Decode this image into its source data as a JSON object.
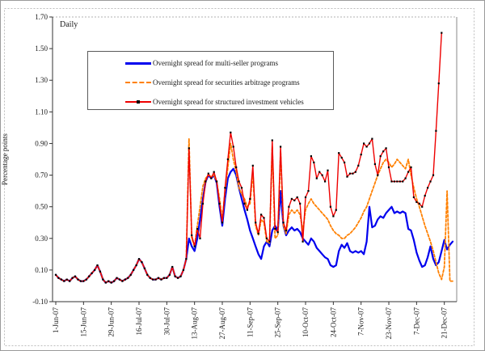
{
  "figure": {
    "frequency_label": "Daily",
    "y_axis_label": "Percentage points",
    "background": "#ffffff",
    "outer_border_color": "#9a9a9a"
  },
  "chart_data": {
    "type": "line",
    "title": "",
    "xlabel": "",
    "ylabel": "Percentage points",
    "grid": "none",
    "legend_position": "upper-left-inside",
    "y_axis": {
      "min": -0.1,
      "max": 1.7,
      "tick_step": 0.2,
      "tick_labels": [
        "-0.10",
        "0.10",
        "0.30",
        "0.50",
        "0.70",
        "0.90",
        "1.10",
        "1.30",
        "1.50",
        "1.70"
      ]
    },
    "x_axis": {
      "unit": "business days (1-Jun-07 to 27-Dec-07)",
      "tick_labels": [
        "1-Jun-07",
        "15-Jun-07",
        "29-Jun-07",
        "16-Jul-07",
        "30-Jul-07",
        "13-Aug-07",
        "27-Aug-07",
        "11-Sep-07",
        "25-Sep-07",
        "10-Oct-07",
        "24-Oct-07",
        "7-Nov-07",
        "23-Nov-07",
        "7-Dec-07",
        "21-Dec-07"
      ],
      "tick_indices": [
        0,
        10,
        20,
        30,
        40,
        50,
        60,
        70,
        80,
        90,
        100,
        110,
        120,
        130,
        140
      ]
    },
    "series": [
      {
        "name": "Overnight spread for multi-seller programs",
        "color": "#0000EE",
        "line_style": "solid",
        "line_width": 2.2,
        "marker": "none",
        "values": [
          0.07,
          0.05,
          0.04,
          0.03,
          0.04,
          0.03,
          0.05,
          0.06,
          0.04,
          0.03,
          0.03,
          0.04,
          0.06,
          0.08,
          0.1,
          0.13,
          0.09,
          0.04,
          0.02,
          0.03,
          0.02,
          0.03,
          0.05,
          0.04,
          0.03,
          0.04,
          0.05,
          0.07,
          0.1,
          0.13,
          0.17,
          0.15,
          0.11,
          0.07,
          0.05,
          0.04,
          0.04,
          0.05,
          0.04,
          0.05,
          0.05,
          0.07,
          0.12,
          0.06,
          0.05,
          0.06,
          0.1,
          0.17,
          0.3,
          0.25,
          0.22,
          0.3,
          0.42,
          0.55,
          0.66,
          0.7,
          0.68,
          0.7,
          0.65,
          0.5,
          0.38,
          0.55,
          0.68,
          0.72,
          0.74,
          0.7,
          0.62,
          0.55,
          0.48,
          0.42,
          0.35,
          0.3,
          0.25,
          0.2,
          0.17,
          0.25,
          0.28,
          0.25,
          0.35,
          0.38,
          0.35,
          0.6,
          0.38,
          0.32,
          0.35,
          0.37,
          0.35,
          0.36,
          0.34,
          0.3,
          0.28,
          0.26,
          0.3,
          0.28,
          0.24,
          0.22,
          0.2,
          0.18,
          0.17,
          0.13,
          0.12,
          0.13,
          0.22,
          0.26,
          0.24,
          0.27,
          0.22,
          0.21,
          0.22,
          0.21,
          0.22,
          0.2,
          0.28,
          0.5,
          0.37,
          0.38,
          0.42,
          0.44,
          0.43,
          0.46,
          0.48,
          0.5,
          0.46,
          0.47,
          0.46,
          0.47,
          0.46,
          0.36,
          0.35,
          0.29,
          0.21,
          0.16,
          0.12,
          0.13,
          0.18,
          0.25,
          0.17,
          0.13,
          0.15,
          0.22,
          0.29,
          0.23,
          0.26,
          0.28
        ]
      },
      {
        "name": "Overnight spread for securities arbitrage programs",
        "color": "#FF8000",
        "line_style": "dashed",
        "line_width": 1.8,
        "marker": "none",
        "values": [
          0.07,
          0.05,
          0.04,
          0.03,
          0.04,
          0.03,
          0.05,
          0.06,
          0.04,
          0.03,
          0.03,
          0.04,
          0.06,
          0.08,
          0.1,
          0.13,
          0.09,
          0.04,
          0.02,
          0.03,
          0.02,
          0.03,
          0.05,
          0.04,
          0.03,
          0.04,
          0.05,
          0.07,
          0.1,
          0.13,
          0.17,
          0.15,
          0.11,
          0.07,
          0.05,
          0.04,
          0.04,
          0.05,
          0.04,
          0.05,
          0.05,
          0.07,
          0.12,
          0.06,
          0.05,
          0.06,
          0.1,
          0.17,
          0.93,
          0.3,
          0.25,
          0.38,
          0.5,
          0.63,
          0.68,
          0.7,
          0.69,
          0.7,
          0.66,
          0.55,
          0.42,
          0.6,
          0.75,
          0.9,
          0.8,
          0.72,
          0.62,
          0.58,
          0.55,
          0.5,
          0.52,
          0.72,
          0.38,
          0.32,
          0.42,
          0.4,
          0.28,
          0.27,
          0.88,
          0.3,
          0.32,
          0.85,
          0.38,
          0.33,
          0.45,
          0.48,
          0.46,
          0.48,
          0.45,
          0.35,
          0.48,
          0.52,
          0.55,
          0.52,
          0.5,
          0.48,
          0.46,
          0.44,
          0.42,
          0.38,
          0.35,
          0.33,
          0.32,
          0.3,
          0.3,
          0.32,
          0.33,
          0.35,
          0.37,
          0.4,
          0.43,
          0.47,
          0.5,
          0.55,
          0.6,
          0.65,
          0.7,
          0.74,
          0.78,
          0.8,
          0.78,
          0.75,
          0.77,
          0.8,
          0.78,
          0.76,
          0.74,
          0.8,
          0.7,
          0.62,
          0.55,
          0.5,
          0.44,
          0.38,
          0.33,
          0.28,
          0.22,
          0.15,
          0.08,
          0.04,
          0.12,
          0.6,
          0.03,
          0.03
        ]
      },
      {
        "name": "Overnight spread for structured investment vehicles",
        "color": "#EE0000",
        "line_style": "solid",
        "line_width": 1.4,
        "marker": "square",
        "marker_color": "#000000",
        "values": [
          0.07,
          0.05,
          0.04,
          0.03,
          0.04,
          0.03,
          0.05,
          0.06,
          0.04,
          0.03,
          0.03,
          0.04,
          0.06,
          0.08,
          0.1,
          0.13,
          0.09,
          0.04,
          0.02,
          0.03,
          0.02,
          0.03,
          0.05,
          0.04,
          0.03,
          0.04,
          0.05,
          0.07,
          0.1,
          0.13,
          0.17,
          0.15,
          0.11,
          0.07,
          0.05,
          0.04,
          0.04,
          0.05,
          0.04,
          0.05,
          0.05,
          0.07,
          0.12,
          0.06,
          0.05,
          0.06,
          0.1,
          0.17,
          0.87,
          0.32,
          0.25,
          0.36,
          0.3,
          0.52,
          0.66,
          0.71,
          0.68,
          0.72,
          0.66,
          0.52,
          0.4,
          0.62,
          0.8,
          0.97,
          0.88,
          0.75,
          0.66,
          0.62,
          0.52,
          0.48,
          0.55,
          0.76,
          0.4,
          0.33,
          0.45,
          0.43,
          0.3,
          0.28,
          0.92,
          0.36,
          0.34,
          0.88,
          0.4,
          0.35,
          0.5,
          0.55,
          0.54,
          0.56,
          0.52,
          0.28,
          0.56,
          0.6,
          0.82,
          0.78,
          0.68,
          0.72,
          0.7,
          0.66,
          0.73,
          0.5,
          0.44,
          0.48,
          0.84,
          0.81,
          0.78,
          0.69,
          0.71,
          0.71,
          0.72,
          0.76,
          0.83,
          0.9,
          0.88,
          0.9,
          0.93,
          0.77,
          0.7,
          0.82,
          0.85,
          0.87,
          0.75,
          0.66,
          0.66,
          0.66,
          0.66,
          0.66,
          0.68,
          0.72,
          0.75,
          0.56,
          0.53,
          0.52,
          0.5,
          0.57,
          0.62,
          0.66,
          0.7,
          0.98,
          1.28,
          1.6
        ]
      }
    ]
  }
}
